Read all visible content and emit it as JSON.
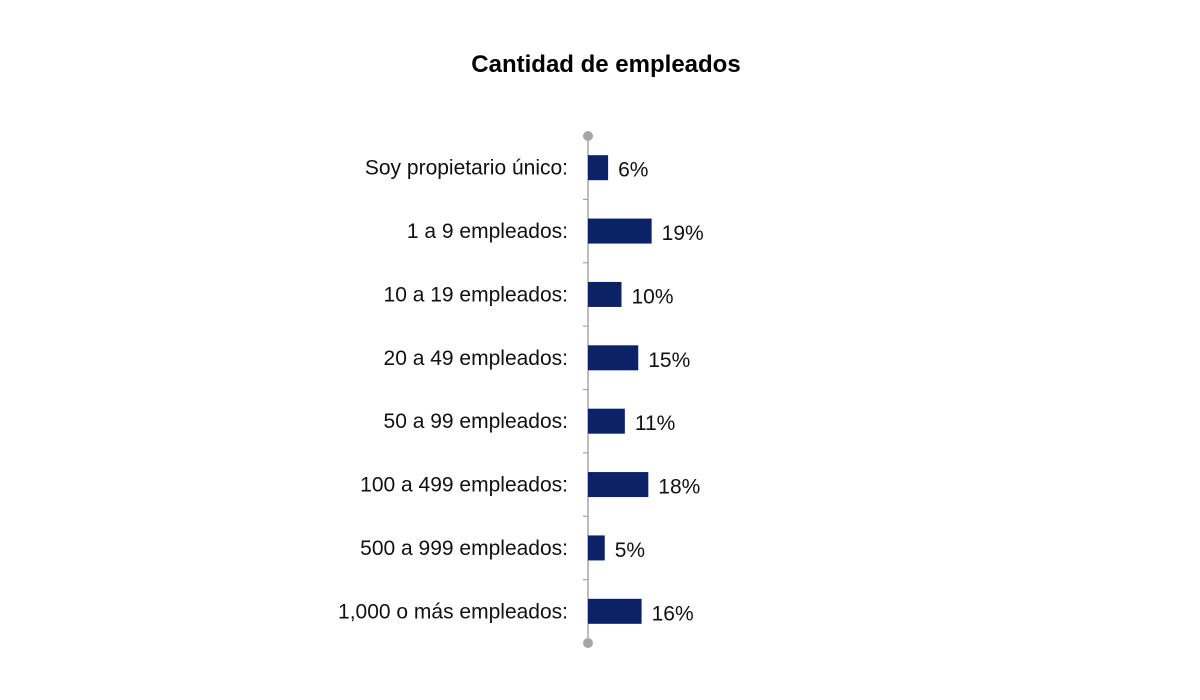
{
  "chart_data": {
    "type": "bar",
    "orientation": "horizontal",
    "title": "Cantidad de empleados",
    "xlabel": "",
    "ylabel": "",
    "categories": [
      "Soy propietario único:",
      "1 a 9 empleados:",
      "10 a 19 empleados:",
      "20 a 49 empleados:",
      "50 a 99 empleados:",
      "100 a 499 empleados:",
      "500 a 999 empleados:",
      "1,000 o más empleados:"
    ],
    "values": [
      6,
      19,
      10,
      15,
      11,
      18,
      5,
      16
    ],
    "value_labels": [
      "6%",
      "19%",
      "10%",
      "15%",
      "11%",
      "18%",
      "5%",
      "16%"
    ],
    "unit": "%",
    "grid": false,
    "legend": "none",
    "bar_color": "#0b2267",
    "axis_color": "#a6a6a6"
  }
}
